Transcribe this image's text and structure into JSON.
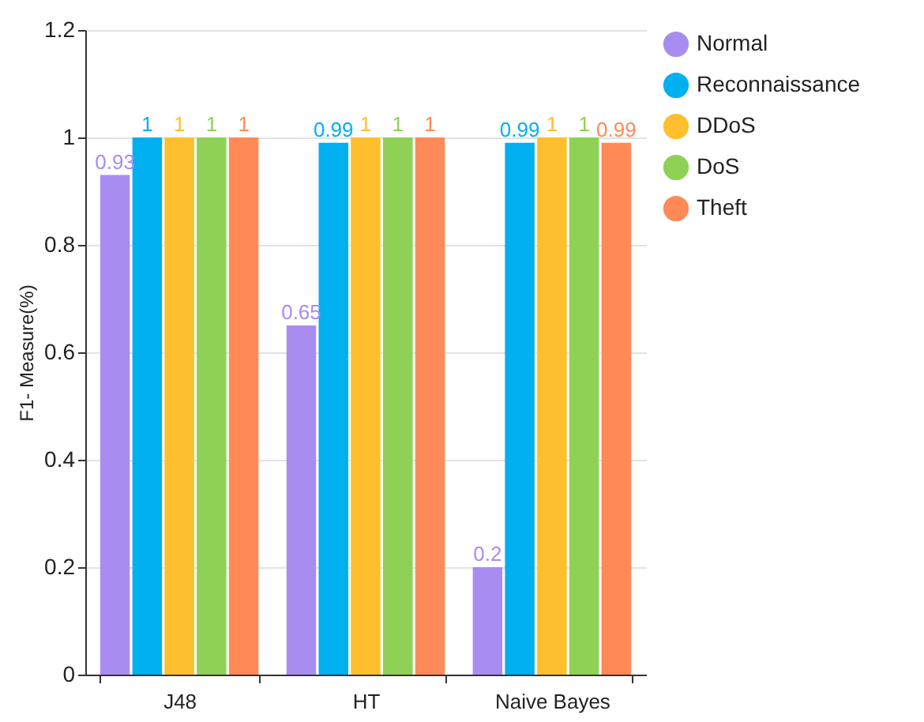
{
  "chart_data": {
    "type": "bar",
    "ylabel": "F1- Measure(%)",
    "categories": [
      "J48",
      "HT",
      "Naive Bayes"
    ],
    "series": [
      {
        "name": "Normal",
        "color": "#a98cf0",
        "values": [
          0.93,
          0.65,
          0.2
        ]
      },
      {
        "name": "Reconnaissance",
        "color": "#00b0f0",
        "values": [
          1,
          0.99,
          0.99
        ]
      },
      {
        "name": "DDoS",
        "color": "#fdbf2d",
        "values": [
          1,
          1,
          1
        ]
      },
      {
        "name": "DoS",
        "color": "#8fd155",
        "values": [
          1,
          1,
          1
        ]
      },
      {
        "name": "Theft",
        "color": "#ff8a57",
        "values": [
          1,
          1,
          0.99
        ]
      }
    ],
    "ylim": [
      0,
      1.2
    ],
    "yticks": [
      0,
      0.2,
      0.4,
      0.6,
      0.8,
      1,
      1.2
    ],
    "grid": "y",
    "legend": "right",
    "data_labels": true
  }
}
